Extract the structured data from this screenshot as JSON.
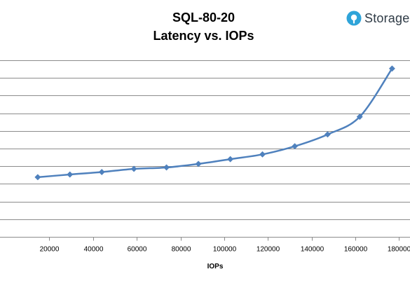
{
  "brand": {
    "name": "Storage",
    "accent": "#2fa4d9",
    "text_color": "#2f3b46"
  },
  "chart_data": {
    "type": "line",
    "title": "SQL-80-20",
    "subtitle": "Latency vs. IOPs",
    "xlabel": "IOPs",
    "ylabel": "",
    "xlim": [
      0,
      185000
    ],
    "x_ticks": [
      20000,
      40000,
      60000,
      80000,
      100000,
      120000,
      140000,
      160000,
      180000
    ],
    "x_tick_labels": [
      "20000",
      "40000",
      "60000",
      "80000",
      "100000",
      "120000",
      "140000",
      "160000",
      "180000"
    ],
    "y_gridlines": 11,
    "y_tick_labels_visible": false,
    "grid": true,
    "legend": "none",
    "series_color": "#4f81bd",
    "series": [
      {
        "x": [
          14700,
          29400,
          44000,
          58700,
          73600,
          88200,
          102800,
          117500,
          132300,
          147300,
          162000,
          176800
        ],
        "y": [
          3.38,
          3.53,
          3.67,
          3.85,
          3.93,
          4.13,
          4.4,
          4.67,
          5.13,
          5.8,
          6.8,
          9.53
        ]
      }
    ]
  }
}
